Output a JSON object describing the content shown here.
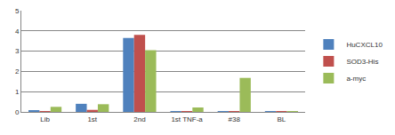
{
  "chart_data": {
    "type": "bar",
    "categories": [
      "Lib",
      "1st",
      "2nd",
      "1st TNF-a",
      "#38",
      "BL"
    ],
    "series": [
      {
        "name": "HuCXCL10",
        "color": "#4f81bd",
        "values": [
          0.08,
          0.4,
          3.65,
          0.03,
          0.03,
          0.03
        ]
      },
      {
        "name": "SOD3-His",
        "color": "#c0504d",
        "values": [
          0.03,
          0.1,
          3.8,
          0.02,
          0.02,
          0.02
        ]
      },
      {
        "name": "a-myc",
        "color": "#9bbb59",
        "values": [
          0.25,
          0.38,
          3.05,
          0.22,
          1.68,
          0.02
        ]
      }
    ],
    "ylim": [
      0,
      5
    ],
    "yticks": [
      0,
      1,
      2,
      3,
      4,
      5
    ],
    "grid": true,
    "legend": "right"
  }
}
